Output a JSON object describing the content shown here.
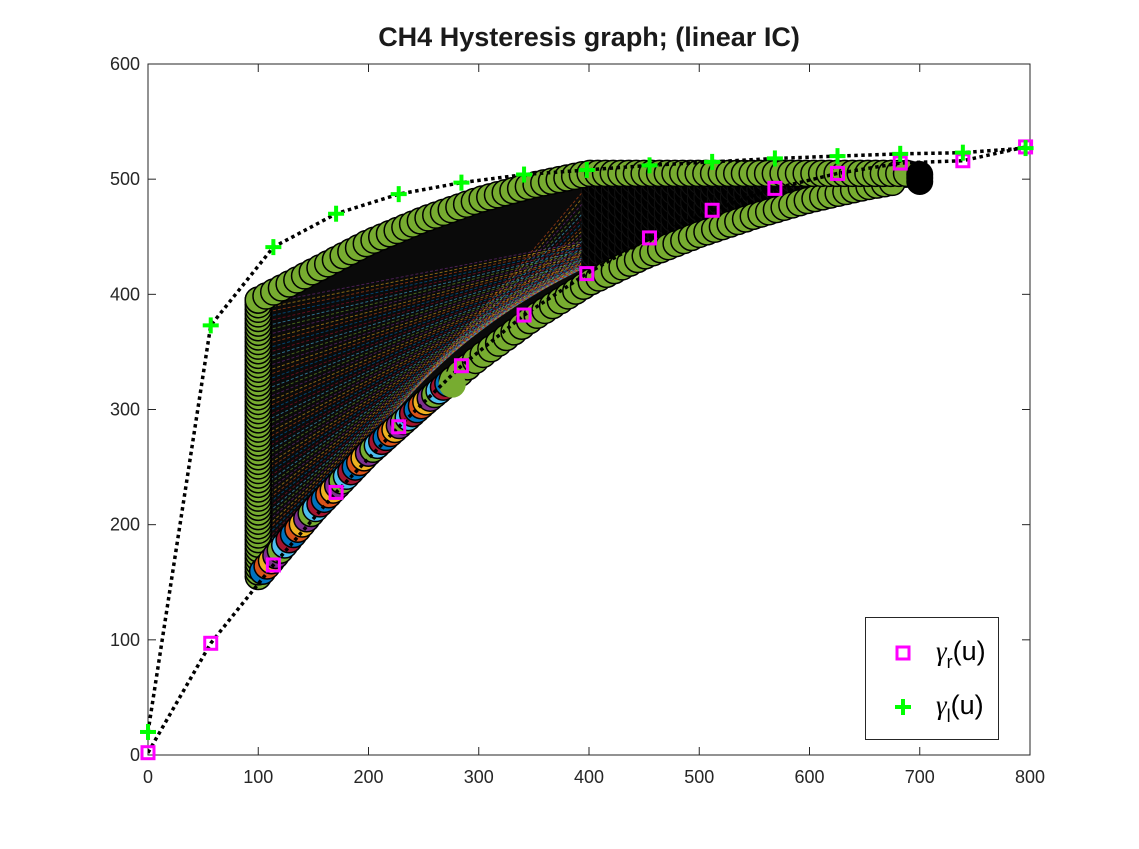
{
  "chart_data": {
    "type": "scatter",
    "title": "CH4 Hysteresis graph; (linear IC)",
    "xlabel": "",
    "ylabel": "",
    "xlim": [
      0,
      800
    ],
    "ylim": [
      0,
      600
    ],
    "xticks": [
      0,
      100,
      200,
      300,
      400,
      500,
      600,
      700,
      800
    ],
    "yticks": [
      0,
      100,
      200,
      300,
      400,
      500,
      600
    ],
    "grid": false,
    "legend_position": "bottom-right",
    "legend": [
      {
        "symbol": "γ",
        "sub": "r",
        "arg": "(u)",
        "marker": "square",
        "color": "#ff00ff"
      },
      {
        "symbol": "γ",
        "sub": "l",
        "arg": "(u)",
        "marker": "plus",
        "color": "#00ff00"
      }
    ],
    "series": [
      {
        "name": "γr(u)",
        "marker": "square",
        "color": "#ff00ff",
        "x": [
          0,
          56.9,
          113.7,
          170.6,
          227.4,
          284.3,
          341.1,
          398,
          454.9,
          511.7,
          568.6,
          625.4,
          682.3,
          739.1,
          796
        ],
        "y": [
          2,
          97,
          165,
          228,
          285,
          338,
          382,
          418,
          449,
          473,
          492,
          505,
          514,
          516,
          528
        ]
      },
      {
        "name": "γl(u)",
        "marker": "plus",
        "color": "#00ff00",
        "x": [
          0,
          56.9,
          113.7,
          170.6,
          227.4,
          284.3,
          341.1,
          398,
          454.9,
          511.7,
          568.6,
          625.4,
          682.3,
          739.1,
          796
        ],
        "y": [
          20,
          373,
          441,
          470,
          487,
          497,
          504,
          508,
          512,
          515,
          518,
          520,
          522,
          523,
          527
        ]
      }
    ],
    "scanning_loops": {
      "outer_color": "#77ac30",
      "edge_color": "#000000",
      "left_edge": {
        "x": [
          100,
          100
        ],
        "y": [
          155,
          395
        ]
      },
      "upper_branch": {
        "x": [
          100,
          150,
          200,
          250,
          300,
          350,
          400,
          450,
          500,
          550,
          600,
          650,
          700
        ],
        "y": [
          395,
          420,
          445,
          465,
          482,
          495,
          505,
          505,
          505,
          505,
          505,
          505,
          505
        ]
      },
      "lower_branch": {
        "x": [
          100,
          150,
          200,
          250,
          300,
          350,
          400,
          450,
          500,
          550,
          600,
          650,
          680
        ],
        "y": [
          155,
          212,
          262,
          305,
          345,
          380,
          410,
          433,
          452,
          468,
          482,
          493,
          498
        ]
      },
      "inner_start": {
        "x": 276,
        "y": 322
      },
      "inner_colors": [
        "#0072bd",
        "#d95319",
        "#edb120",
        "#7e2f8e",
        "#77ac30",
        "#4dbeee",
        "#a2142f"
      ]
    }
  }
}
